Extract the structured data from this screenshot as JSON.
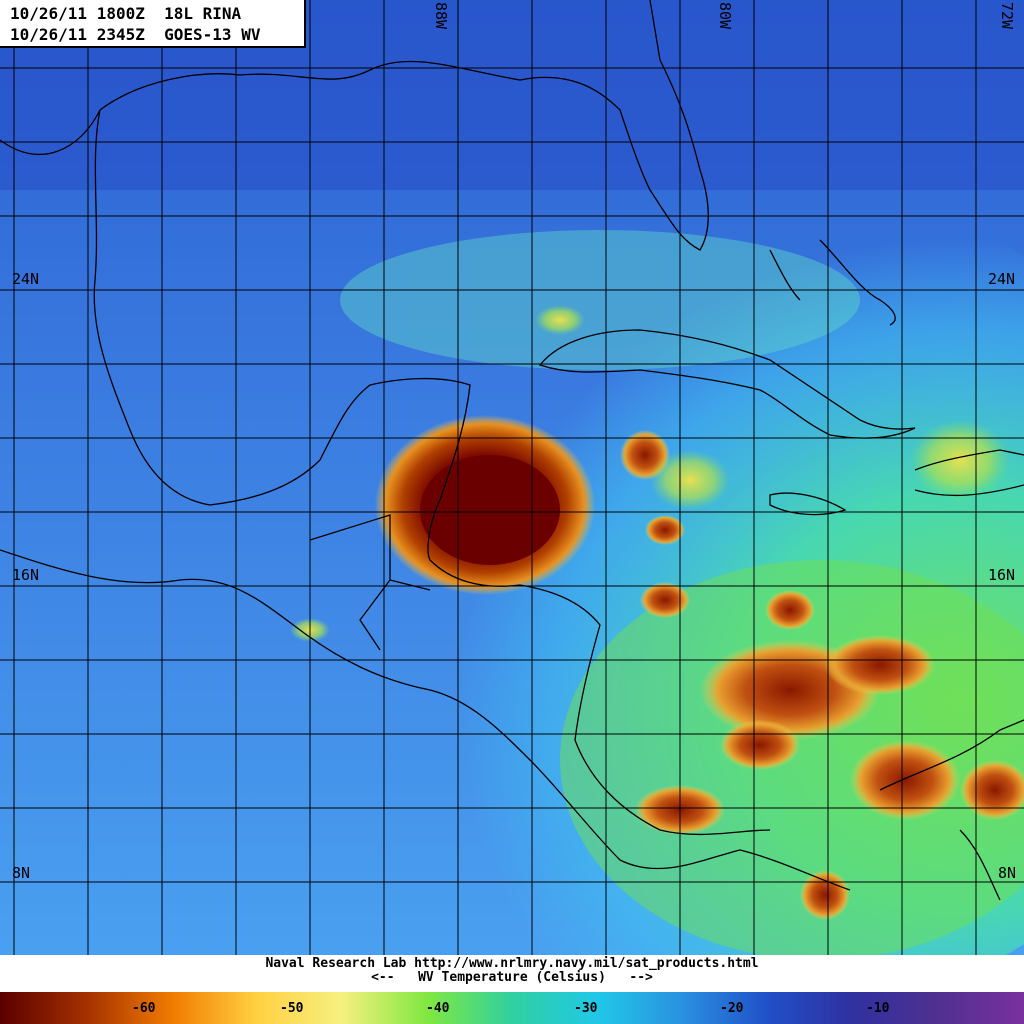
{
  "header": {
    "line1": "10/26/11 1800Z  18L RINA",
    "line2": "10/26/11 2345Z  GOES-13 WV"
  },
  "grid": {
    "lat_labels": [
      "24N",
      "16N",
      "8N"
    ],
    "lon_labels": [
      "88W",
      "80W",
      "72W"
    ]
  },
  "footer": {
    "credit": "Naval Research Lab http://www.nrlmry.navy.mil/sat_products.html",
    "scale_title": "<--   WV Temperature (Celsius)   -->"
  },
  "colorbar": {
    "labels": [
      "-60",
      "-50",
      "-40",
      "-30",
      "-20",
      "-10"
    ],
    "colors": [
      "#5a0000",
      "#a33000",
      "#f07a00",
      "#ffd040",
      "#f6f080",
      "#80e840",
      "#30d0a0",
      "#20c8e8",
      "#2a90e0",
      "#2050c8",
      "#3030a0",
      "#503090",
      "#7a30a0"
    ]
  },
  "storm": {
    "name": "18L RINA"
  }
}
